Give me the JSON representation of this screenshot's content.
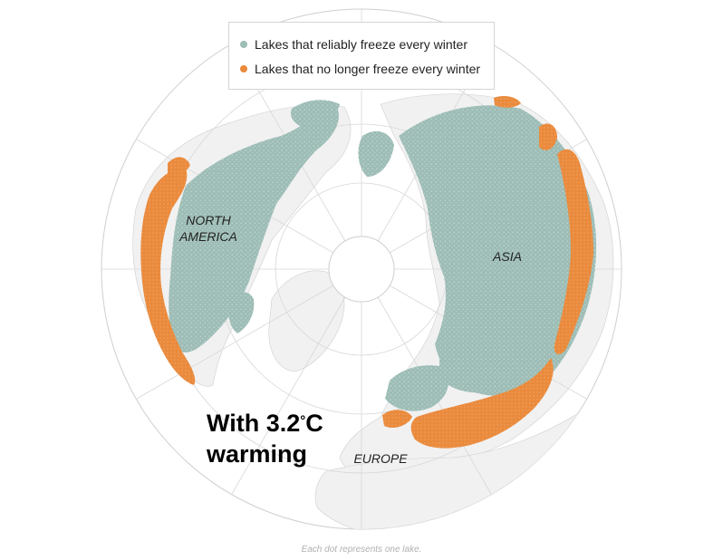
{
  "legend": {
    "items": [
      {
        "label": "Lakes that reliably freeze every winter",
        "color": "#9dbdb6"
      },
      {
        "label": "Lakes that no longer freeze every winter",
        "color": "#ea8a3c"
      }
    ]
  },
  "map": {
    "projection": "north polar azimuthal",
    "land_color": "#f1f1f1",
    "ocean_color": "#ffffff",
    "graticule_color": "#d7d7d7",
    "frozen_color": "#9dbdb6",
    "unfrozen_color": "#ea8a3c",
    "regions": {
      "north_america": "NORTH AMERICA",
      "asia": "ASIA",
      "europe": "EUROPE"
    }
  },
  "headline": {
    "line1_prefix": "With 3.2",
    "degree": "°",
    "line1_suffix": "C",
    "line2": "warming"
  },
  "footnote": "Each dot represents one lake."
}
